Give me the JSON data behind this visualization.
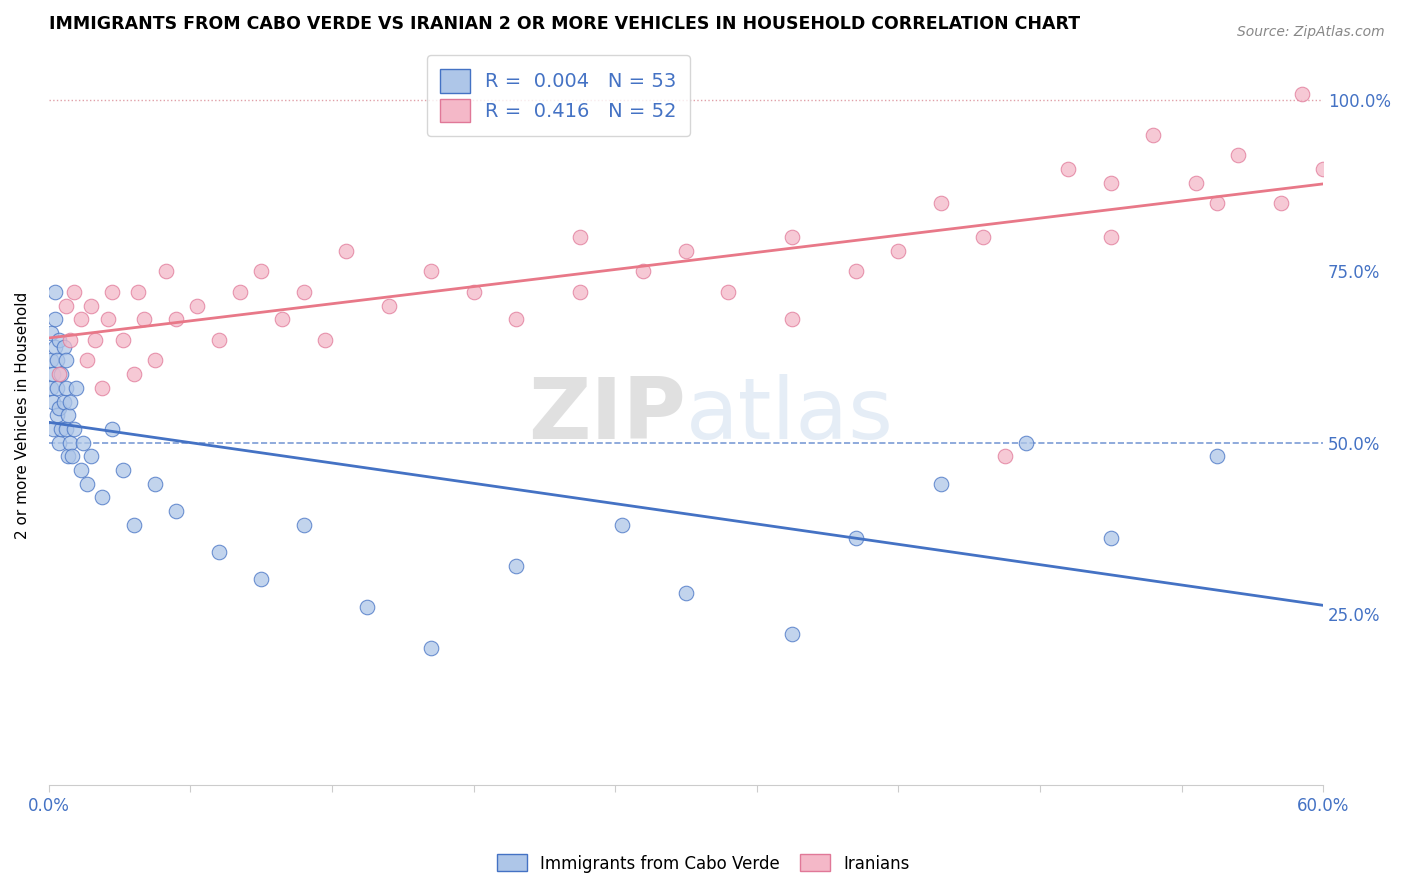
{
  "title": "IMMIGRANTS FROM CABO VERDE VS IRANIAN 2 OR MORE VEHICLES IN HOUSEHOLD CORRELATION CHART",
  "source": "Source: ZipAtlas.com",
  "legend_label1": "Immigrants from Cabo Verde",
  "legend_label2": "Iranians",
  "r1": "0.004",
  "n1": "53",
  "r2": "0.416",
  "n2": "52",
  "color_blue": "#aec6e8",
  "color_pink": "#f4b8c8",
  "color_blue_text": "#4472c4",
  "color_pink_text": "#e07898",
  "color_line_blue": "#4472c4",
  "color_line_pink": "#e87888",
  "watermark_color": "#d0dff0",
  "xmin": 0.0,
  "xmax": 0.6,
  "ymin": 0.0,
  "ymax": 1.08,
  "cabo_verde_x": [
    0.001,
    0.001,
    0.001,
    0.002,
    0.002,
    0.002,
    0.003,
    0.003,
    0.003,
    0.004,
    0.004,
    0.004,
    0.005,
    0.005,
    0.005,
    0.006,
    0.006,
    0.007,
    0.007,
    0.008,
    0.008,
    0.008,
    0.009,
    0.009,
    0.01,
    0.01,
    0.011,
    0.012,
    0.013,
    0.015,
    0.016,
    0.018,
    0.02,
    0.025,
    0.03,
    0.035,
    0.04,
    0.05,
    0.06,
    0.08,
    0.1,
    0.12,
    0.15,
    0.18,
    0.22,
    0.27,
    0.3,
    0.35,
    0.38,
    0.42,
    0.46,
    0.5,
    0.55
  ],
  "cabo_verde_y": [
    0.58,
    0.62,
    0.66,
    0.52,
    0.56,
    0.6,
    0.64,
    0.68,
    0.72,
    0.54,
    0.58,
    0.62,
    0.5,
    0.55,
    0.65,
    0.52,
    0.6,
    0.56,
    0.64,
    0.52,
    0.58,
    0.62,
    0.48,
    0.54,
    0.5,
    0.56,
    0.48,
    0.52,
    0.58,
    0.46,
    0.5,
    0.44,
    0.48,
    0.42,
    0.52,
    0.46,
    0.38,
    0.44,
    0.4,
    0.34,
    0.3,
    0.38,
    0.26,
    0.2,
    0.32,
    0.38,
    0.28,
    0.22,
    0.36,
    0.44,
    0.5,
    0.36,
    0.48
  ],
  "iranian_x": [
    0.005,
    0.008,
    0.01,
    0.012,
    0.015,
    0.018,
    0.02,
    0.022,
    0.025,
    0.028,
    0.03,
    0.035,
    0.04,
    0.042,
    0.045,
    0.05,
    0.055,
    0.06,
    0.07,
    0.08,
    0.09,
    0.1,
    0.11,
    0.12,
    0.13,
    0.14,
    0.16,
    0.18,
    0.2,
    0.22,
    0.25,
    0.28,
    0.3,
    0.32,
    0.35,
    0.38,
    0.4,
    0.42,
    0.44,
    0.48,
    0.5,
    0.52,
    0.54,
    0.56,
    0.58,
    0.59,
    0.6,
    0.55,
    0.5,
    0.45,
    0.35,
    0.25
  ],
  "iranian_y": [
    0.6,
    0.7,
    0.65,
    0.72,
    0.68,
    0.62,
    0.7,
    0.65,
    0.58,
    0.68,
    0.72,
    0.65,
    0.6,
    0.72,
    0.68,
    0.62,
    0.75,
    0.68,
    0.7,
    0.65,
    0.72,
    0.75,
    0.68,
    0.72,
    0.65,
    0.78,
    0.7,
    0.75,
    0.72,
    0.68,
    0.8,
    0.75,
    0.78,
    0.72,
    0.8,
    0.75,
    0.78,
    0.85,
    0.8,
    0.9,
    0.88,
    0.95,
    0.88,
    0.92,
    0.85,
    1.01,
    0.9,
    0.85,
    0.8,
    0.48,
    0.68,
    0.72
  ]
}
